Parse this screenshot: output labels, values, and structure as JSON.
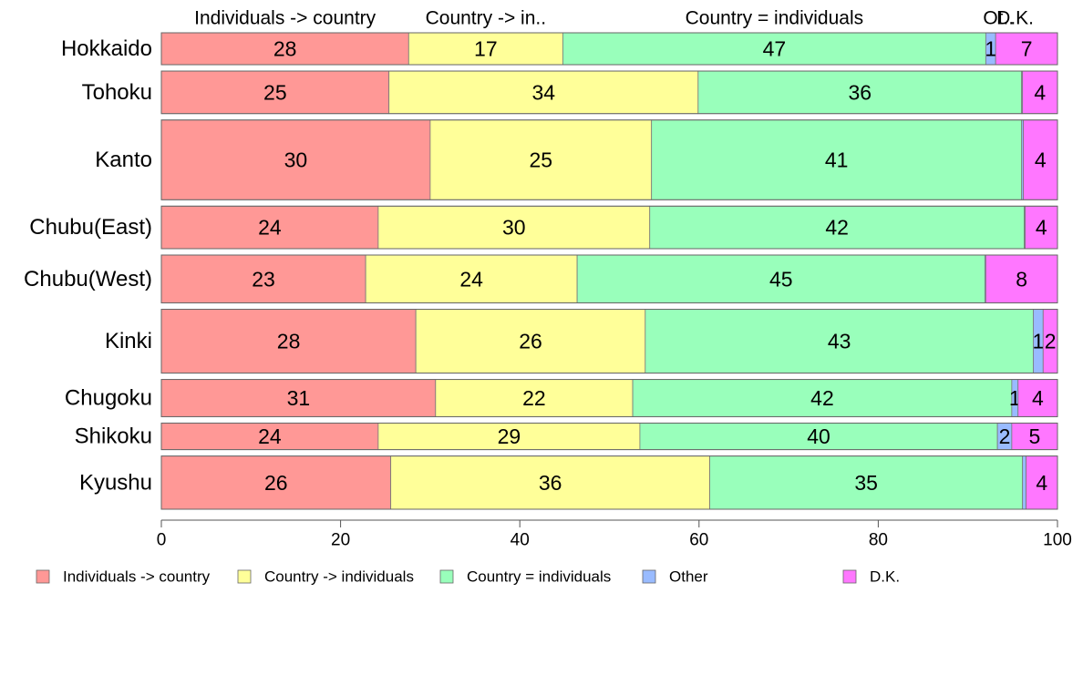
{
  "chart_data": {
    "type": "bar",
    "orientation": "horizontal",
    "stacked": true,
    "categories": [
      "Hokkaido",
      "Tohoku",
      "Kanto",
      "Chubu(East)",
      "Chubu(West)",
      "Kinki",
      "Chugoku",
      "Shikoku",
      "Kyushu"
    ],
    "series": [
      {
        "name": "Individuals -> country",
        "header": "Individuals -> country",
        "color": "#FF9896",
        "values": [
          27.6,
          25.4,
          30.0,
          24.2,
          22.8,
          28.4,
          30.6,
          24.2,
          25.6
        ],
        "labels": [
          "28",
          "25",
          "30",
          "24",
          "23",
          "28",
          "31",
          "24",
          "26"
        ]
      },
      {
        "name": "Country -> individuals",
        "header": "Country -> in..",
        "color": "#FFFF99",
        "values": [
          17.2,
          34.5,
          24.7,
          30.3,
          23.6,
          25.6,
          22.0,
          29.2,
          35.6
        ],
        "labels": [
          "17",
          "34",
          "25",
          "30",
          "24",
          "26",
          "22",
          "29",
          "36"
        ]
      },
      {
        "name": "Country = individuals",
        "header": "Country = individuals",
        "color": "#99FFBB",
        "values": [
          47.2,
          36.1,
          41.3,
          41.8,
          45.5,
          43.3,
          42.3,
          39.9,
          34.9
        ],
        "labels": [
          "47",
          "36",
          "41",
          "42",
          "45",
          "43",
          "42",
          "40",
          "35"
        ]
      },
      {
        "name": "Other",
        "header": "Ot..",
        "color": "#99BBFF",
        "values": [
          1.1,
          0.1,
          0.2,
          0.1,
          0.1,
          1.1,
          0.7,
          1.6,
          0.4
        ],
        "labels": [
          "1",
          "",
          "",
          "",
          "",
          "1",
          "1",
          "2",
          ""
        ]
      },
      {
        "name": "D.K.",
        "header": "D.K.",
        "color": "#FF77FF",
        "values": [
          6.9,
          3.9,
          3.8,
          3.6,
          8.0,
          1.6,
          4.4,
          5.1,
          3.5
        ],
        "labels": [
          "7",
          "4",
          "4",
          "4",
          "8",
          "2",
          "4",
          "5",
          "4"
        ]
      }
    ],
    "row_weights": [
      6,
      8,
      15,
      8,
      9,
      12,
      7,
      5,
      10
    ],
    "xlim": [
      0,
      100
    ],
    "xticks": [
      0,
      20,
      40,
      60,
      80,
      100
    ],
    "legend_position": "bottom",
    "grid": false,
    "title": "",
    "xlabel": "",
    "ylabel": ""
  }
}
